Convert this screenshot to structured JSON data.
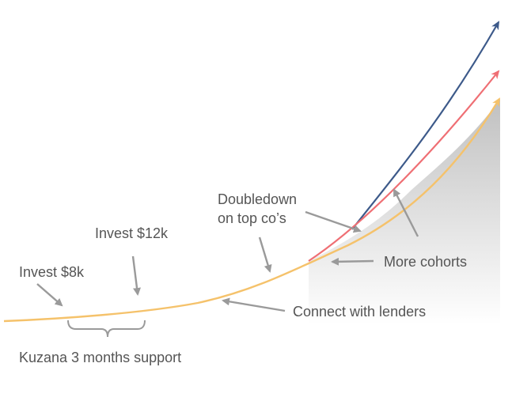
{
  "labels": {
    "invest_8k": "Invest $8k",
    "invest_12k": "Invest $12k",
    "doubledown_line1": "Doubledown",
    "doubledown_line2": "on top co’s",
    "connect_lenders": "Connect with lenders",
    "more_cohorts": "More cohorts",
    "support": "Kuzana 3 months support"
  },
  "colors": {
    "base_curve": "#f5c26b",
    "red_curve": "#ef6f74",
    "blue_curve": "#3d5a8a",
    "annotation_arrow": "#9a9a9a",
    "text": "#555555",
    "shade_light": "#ffffff",
    "shade_dark": "#bdbdbd"
  }
}
